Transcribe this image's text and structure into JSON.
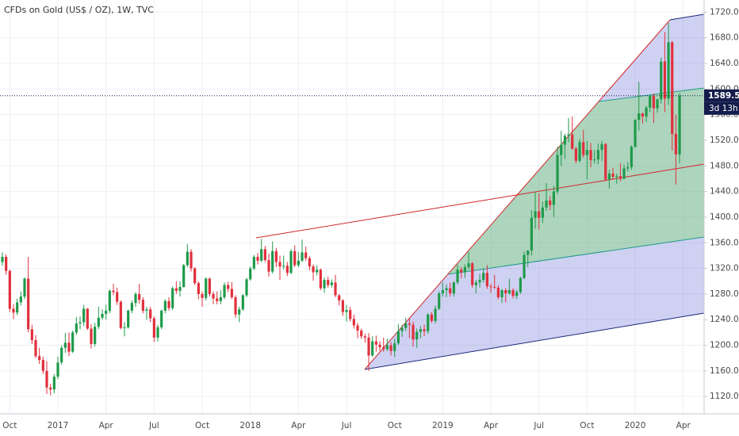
{
  "chart_data": {
    "type": "candlestick",
    "title": "CFDs on Gold (US$ / OZ), 1W, TVC",
    "up_color": "#1f9a4a",
    "down_color": "#e0303c",
    "grid": true,
    "categories": [
      null,
      null,
      "Oct",
      null,
      null,
      null,
      null,
      null,
      null,
      null,
      null,
      null,
      null,
      null,
      null,
      "2017",
      null,
      null,
      null,
      null,
      null,
      null,
      null,
      null,
      null,
      null,
      null,
      null,
      "Apr",
      null,
      null,
      null,
      null,
      null,
      null,
      null,
      null,
      null,
      null,
      null,
      null,
      "Jul",
      null,
      null,
      null,
      null,
      null,
      null,
      null,
      null,
      null,
      null,
      null,
      null,
      "Oct",
      null,
      null,
      null,
      null,
      null,
      null,
      null,
      null,
      null,
      null,
      null,
      null,
      "2018",
      null,
      null,
      null,
      null,
      null,
      null,
      null,
      null,
      null,
      null,
      null,
      null,
      "Apr",
      null,
      null,
      null,
      null,
      null,
      null,
      null,
      null,
      null,
      null,
      null,
      null,
      "Jul",
      null,
      null,
      null,
      null,
      null,
      null,
      null,
      null,
      null,
      null,
      null,
      null,
      "Oct",
      null,
      null,
      null,
      null,
      null,
      null,
      null,
      null,
      null,
      null,
      null,
      null,
      "2019",
      null,
      null,
      null,
      null,
      null,
      null,
      null,
      null,
      null,
      null,
      null,
      null,
      "Apr",
      null,
      null,
      null,
      null,
      null,
      null,
      null,
      null,
      null,
      null,
      null,
      null,
      "Jul",
      null,
      null,
      null,
      null,
      null,
      null,
      null,
      null,
      null,
      null,
      null,
      null,
      "Oct",
      null,
      null,
      null,
      null,
      null,
      null,
      null,
      null,
      null,
      null,
      null,
      null,
      "2020",
      null,
      null,
      null,
      null,
      null,
      null,
      null,
      null,
      null,
      null,
      null,
      null,
      "Apr",
      null
    ],
    "open": [
      1330,
      1338,
      1316,
      1257,
      1251,
      1267,
      1276,
      1304,
      1225,
      1208,
      1183,
      1177,
      1160,
      1134,
      1131,
      1151,
      1173,
      1196,
      1204,
      1190,
      1220,
      1234,
      1236,
      1257,
      1226,
      1202,
      1229,
      1243,
      1249,
      1254,
      1285,
      1283,
      1268,
      1227,
      1228,
      1254,
      1266,
      1280,
      1271,
      1254,
      1256,
      1242,
      1212,
      1228,
      1254,
      1269,
      1258,
      1289,
      1285,
      1291,
      1325,
      1346,
      1320,
      1297,
      1280,
      1274,
      1304,
      1280,
      1273,
      1269,
      1275,
      1294,
      1288,
      1275,
      1248,
      1256,
      1278,
      1303,
      1320,
      1338,
      1332,
      1350,
      1333,
      1315,
      1347,
      1330,
      1323,
      1324,
      1313,
      1347,
      1325,
      1332,
      1345,
      1336,
      1323,
      1314,
      1318,
      1289,
      1302,
      1294,
      1298,
      1278,
      1270,
      1252,
      1255,
      1241,
      1231,
      1223,
      1214,
      1212,
      1184,
      1206,
      1201,
      1197,
      1194,
      1200,
      1191,
      1203,
      1222,
      1227,
      1234,
      1232,
      1209,
      1221,
      1225,
      1222,
      1248,
      1238,
      1257,
      1281,
      1286,
      1289,
      1281,
      1298,
      1318,
      1314,
      1322,
      1328,
      1294,
      1298,
      1302,
      1313,
      1292,
      1291,
      1290,
      1275,
      1286,
      1281,
      1286,
      1277,
      1283,
      1305,
      1341,
      1348,
      1399,
      1409,
      1399,
      1415,
      1426,
      1419,
      1440,
      1497,
      1513,
      1527,
      1529,
      1507,
      1488,
      1517,
      1497,
      1505,
      1489,
      1490,
      1505,
      1514,
      1459,
      1468,
      1463,
      1464,
      1460,
      1476,
      1478,
      1510,
      1552,
      1562,
      1557,
      1571,
      1589,
      1570,
      1584,
      1643,
      1585,
      1673,
      1530,
      1498,
      null,
      null
    ],
    "high": [
      1345,
      1342,
      1318,
      1264,
      1273,
      1284,
      1306,
      1338,
      1232,
      1216,
      1196,
      1182,
      1175,
      1140,
      1155,
      1182,
      1200,
      1219,
      1220,
      1223,
      1244,
      1245,
      1263,
      1258,
      1233,
      1235,
      1260,
      1256,
      1263,
      1287,
      1296,
      1290,
      1270,
      1236,
      1256,
      1270,
      1283,
      1296,
      1275,
      1260,
      1260,
      1245,
      1232,
      1256,
      1272,
      1275,
      1292,
      1300,
      1300,
      1327,
      1358,
      1350,
      1322,
      1300,
      1284,
      1306,
      1306,
      1284,
      1284,
      1286,
      1298,
      1299,
      1299,
      1278,
      1260,
      1280,
      1305,
      1323,
      1341,
      1344,
      1366,
      1355,
      1343,
      1362,
      1352,
      1340,
      1340,
      1330,
      1350,
      1356,
      1346,
      1365,
      1354,
      1339,
      1326,
      1325,
      1320,
      1306,
      1307,
      1303,
      1310,
      1280,
      1272,
      1263,
      1260,
      1248,
      1235,
      1226,
      1218,
      1219,
      1214,
      1215,
      1206,
      1212,
      1210,
      1205,
      1210,
      1233,
      1232,
      1243,
      1243,
      1237,
      1226,
      1230,
      1232,
      1250,
      1252,
      1262,
      1284,
      1298,
      1295,
      1298,
      1300,
      1326,
      1322,
      1326,
      1346,
      1330,
      1302,
      1311,
      1320,
      1325,
      1296,
      1310,
      1294,
      1288,
      1289,
      1304,
      1289,
      1287,
      1307,
      1346,
      1348,
      1411,
      1439,
      1437,
      1424,
      1453,
      1433,
      1449,
      1510,
      1535,
      1530,
      1555,
      1557,
      1510,
      1522,
      1536,
      1519,
      1516,
      1505,
      1515,
      1519,
      1516,
      1474,
      1477,
      1468,
      1484,
      1482,
      1486,
      1512,
      1553,
      1611,
      1563,
      1574,
      1591,
      1593,
      1585,
      1649,
      1689,
      1703,
      1675,
      1560,
      1594,
      null,
      null
    ],
    "low": [
      1324,
      1310,
      1252,
      1241,
      1247,
      1262,
      1272,
      1220,
      1202,
      1180,
      1171,
      1155,
      1124,
      1122,
      1125,
      1147,
      1170,
      1188,
      1183,
      1188,
      1216,
      1225,
      1230,
      1224,
      1195,
      1198,
      1225,
      1240,
      1240,
      1250,
      1278,
      1263,
      1225,
      1214,
      1226,
      1250,
      1260,
      1265,
      1250,
      1240,
      1236,
      1205,
      1206,
      1225,
      1250,
      1254,
      1255,
      1280,
      1276,
      1290,
      1322,
      1315,
      1294,
      1272,
      1260,
      1270,
      1276,
      1264,
      1264,
      1264,
      1272,
      1283,
      1272,
      1243,
      1236,
      1254,
      1275,
      1301,
      1317,
      1326,
      1330,
      1330,
      1307,
      1312,
      1322,
      1302,
      1318,
      1308,
      1311,
      1322,
      1322,
      1330,
      1332,
      1317,
      1301,
      1309,
      1286,
      1282,
      1290,
      1290,
      1275,
      1262,
      1246,
      1237,
      1237,
      1226,
      1211,
      1210,
      1204,
      1160,
      1182,
      1190,
      1191,
      1190,
      1191,
      1184,
      1182,
      1200,
      1213,
      1222,
      1211,
      1198,
      1196,
      1211,
      1214,
      1218,
      1235,
      1234,
      1255,
      1276,
      1275,
      1276,
      1276,
      1295,
      1305,
      1305,
      1318,
      1290,
      1281,
      1290,
      1298,
      1288,
      1282,
      1288,
      1272,
      1266,
      1267,
      1279,
      1273,
      1272,
      1280,
      1303,
      1322,
      1340,
      1382,
      1381,
      1391,
      1410,
      1411,
      1400,
      1436,
      1480,
      1491,
      1517,
      1505,
      1484,
      1485,
      1493,
      1459,
      1478,
      1484,
      1483,
      1488,
      1456,
      1445,
      1458,
      1452,
      1456,
      1459,
      1471,
      1474,
      1508,
      1535,
      1546,
      1549,
      1564,
      1547,
      1563,
      1577,
      1564,
      1575,
      1504,
      1451,
      1484,
      null,
      null
    ],
    "close": [
      1338,
      1316,
      1257,
      1251,
      1267,
      1276,
      1304,
      1225,
      1208,
      1183,
      1177,
      1160,
      1134,
      1131,
      1151,
      1173,
      1196,
      1204,
      1190,
      1220,
      1234,
      1236,
      1257,
      1226,
      1202,
      1229,
      1243,
      1249,
      1254,
      1285,
      1283,
      1268,
      1227,
      1228,
      1254,
      1266,
      1280,
      1271,
      1254,
      1256,
      1242,
      1212,
      1228,
      1254,
      1269,
      1258,
      1289,
      1285,
      1291,
      1325,
      1346,
      1320,
      1297,
      1280,
      1274,
      1304,
      1280,
      1273,
      1269,
      1275,
      1294,
      1288,
      1275,
      1248,
      1256,
      1278,
      1303,
      1320,
      1338,
      1332,
      1350,
      1333,
      1315,
      1347,
      1330,
      1323,
      1324,
      1313,
      1347,
      1325,
      1332,
      1345,
      1336,
      1323,
      1314,
      1318,
      1289,
      1302,
      1294,
      1298,
      1278,
      1270,
      1252,
      1255,
      1241,
      1231,
      1223,
      1214,
      1212,
      1184,
      1206,
      1201,
      1197,
      1194,
      1200,
      1191,
      1203,
      1222,
      1227,
      1234,
      1232,
      1209,
      1221,
      1225,
      1222,
      1248,
      1238,
      1257,
      1281,
      1286,
      1289,
      1281,
      1298,
      1318,
      1314,
      1322,
      1328,
      1294,
      1298,
      1302,
      1313,
      1292,
      1291,
      1290,
      1275,
      1286,
      1281,
      1286,
      1277,
      1283,
      1305,
      1341,
      1348,
      1399,
      1409,
      1399,
      1415,
      1426,
      1419,
      1440,
      1497,
      1513,
      1527,
      1529,
      1507,
      1488,
      1517,
      1497,
      1505,
      1489,
      1490,
      1505,
      1514,
      1459,
      1468,
      1463,
      1464,
      1460,
      1476,
      1478,
      1510,
      1552,
      1562,
      1557,
      1571,
      1589,
      1570,
      1584,
      1643,
      1585,
      1673,
      1530,
      1498,
      1589.5,
      null,
      null
    ],
    "ylim": [
      1093,
      1739
    ],
    "yticks": [
      {
        "value": 1120,
        "label": "1120.00"
      },
      {
        "value": 1160,
        "label": "1160.00"
      },
      {
        "value": 1200,
        "label": "1200.00"
      },
      {
        "value": 1240,
        "label": "1240.00"
      },
      {
        "value": 1280,
        "label": "1280.00"
      },
      {
        "value": 1320,
        "label": "1320.00"
      },
      {
        "value": 1360,
        "label": "1360.00"
      },
      {
        "value": 1400,
        "label": "1400.00"
      },
      {
        "value": 1440,
        "label": "1440.00"
      },
      {
        "value": 1480,
        "label": "1480.00"
      },
      {
        "value": 1520,
        "label": "1520.00"
      },
      {
        "value": 1560,
        "label": "1560.00"
      },
      {
        "value": 1600,
        "label": "1600.00"
      },
      {
        "value": 1640,
        "label": "1640.00"
      },
      {
        "value": 1680,
        "label": "1680.00"
      },
      {
        "value": 1720,
        "label": "1720.00"
      }
    ],
    "last_price": {
      "value": 1589.5,
      "label": "1589.50",
      "color": "#131c4b"
    },
    "countdown": "3d 13h"
  }
}
